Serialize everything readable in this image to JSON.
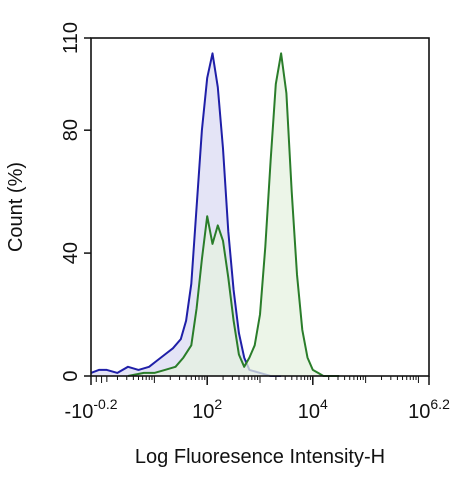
{
  "chart_data": {
    "type": "area",
    "xlabel": "Log Fluoresence Intensity-H",
    "ylabel": "Count  (%)",
    "ylim": [
      0,
      110
    ],
    "y_ticks": [
      {
        "value": 0,
        "label": "0"
      },
      {
        "value": 40,
        "label": "40"
      },
      {
        "value": 80,
        "label": "80"
      },
      {
        "value": 110,
        "label": "110"
      }
    ],
    "xlim": [
      -0.2,
      6.2
    ],
    "x_scale": "biexponential (log)",
    "x_ticks": [
      {
        "value": -0.2,
        "base": "-10",
        "exp": "-0.2"
      },
      {
        "value": 2,
        "base": "10",
        "exp": "2"
      },
      {
        "value": 4,
        "base": "10",
        "exp": "4"
      },
      {
        "value": 6.2,
        "base": "10",
        "exp": "6.2"
      }
    ],
    "grid": false,
    "legend": "none",
    "series": [
      {
        "color": "#1f1fa8",
        "fill": "#e4e4f6",
        "x": [
          -0.2,
          -0.05,
          0.1,
          0.3,
          0.5,
          0.7,
          0.9,
          1.05,
          1.2,
          1.35,
          1.5,
          1.6,
          1.7,
          1.8,
          1.9,
          2.0,
          2.1,
          2.2,
          2.3,
          2.4,
          2.5,
          2.6,
          2.7,
          2.8,
          3.0,
          3.2,
          3.4
        ],
        "values": [
          1,
          2,
          2,
          1,
          3,
          2,
          3,
          5,
          7,
          9,
          12,
          18,
          30,
          55,
          80,
          97,
          105,
          94,
          74,
          47,
          28,
          14,
          6,
          2,
          1,
          0,
          0
        ]
      },
      {
        "color": "#2a7d2a",
        "fill": "#e6f1e0",
        "x": [
          0.5,
          0.8,
          1.0,
          1.2,
          1.4,
          1.55,
          1.7,
          1.8,
          1.9,
          2.0,
          2.1,
          2.2,
          2.3,
          2.4,
          2.5,
          2.6,
          2.7,
          2.8,
          2.9,
          3.0,
          3.1,
          3.2,
          3.3,
          3.4,
          3.5,
          3.6,
          3.7,
          3.8,
          3.9,
          4.0,
          4.1,
          4.2,
          4.3,
          4.5
        ],
        "values": [
          0,
          1,
          1,
          2,
          3,
          6,
          10,
          22,
          38,
          52,
          43,
          49,
          44,
          32,
          18,
          7,
          3,
          6,
          10,
          20,
          42,
          70,
          95,
          105,
          92,
          60,
          33,
          15,
          6,
          2,
          1,
          0,
          0,
          0
        ]
      }
    ]
  }
}
